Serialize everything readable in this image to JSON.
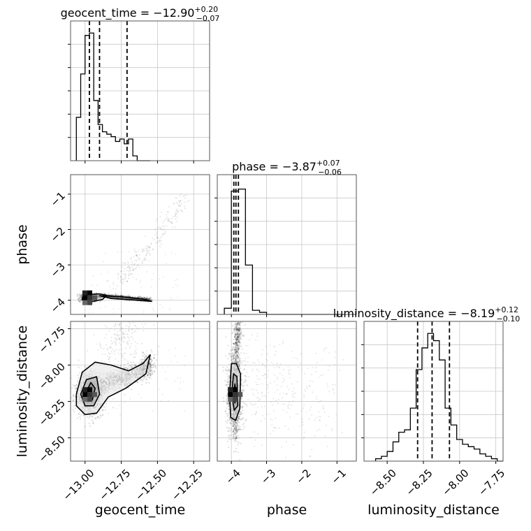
{
  "chart_data": {
    "type": "corner",
    "parameters": [
      {
        "name": "geocent_time",
        "title_main": "geocent_time = −12.90",
        "title_sup": "+0.20",
        "title_sub": "−0.07",
        "lim": [
          -13.1,
          -12.14
        ],
        "ticks": [
          -13.0,
          -12.75,
          -12.5,
          -12.25
        ],
        "tick_labels": [
          "−13.00",
          "−12.75",
          "−12.50",
          "−12.25"
        ],
        "quantiles": [
          -12.97,
          -12.9,
          -12.71
        ],
        "hist": {
          "edges": [
            -13.06,
            -13.03,
            -13.0,
            -12.97,
            -12.94,
            -12.91,
            -12.88,
            -12.85,
            -12.82,
            -12.79,
            -12.76,
            -12.73,
            -12.7,
            -12.67,
            -12.64,
            -12.61,
            -12.58,
            -12.55
          ],
          "counts": [
            18,
            36,
            52,
            53,
            25,
            15,
            12,
            11,
            10,
            8,
            9,
            7,
            9,
            2,
            0,
            0,
            0
          ]
        },
        "hist_max": 58
      },
      {
        "name": "phase",
        "title_main": "phase = −3.87",
        "title_sup": "+0.07",
        "title_sub": "−0.06",
        "lim": [
          -4.4,
          -0.45
        ],
        "ticks": [
          -4,
          -3,
          -2,
          -1
        ],
        "tick_labels": [
          "−4",
          "−3",
          "−2",
          "−1"
        ],
        "quantiles": [
          -3.93,
          -3.87,
          -3.8
        ],
        "hist": {
          "edges": [
            -4.2,
            -4.0,
            -3.8,
            -3.6,
            -3.4,
            -3.2,
            -3.0,
            -2.8,
            -2.6,
            -2.4,
            -2.2,
            -2.0,
            -1.8,
            -1.6,
            -1.4,
            -1.2,
            -1.0,
            -0.8
          ],
          "counts": [
            3,
            60,
            61,
            24,
            2,
            1,
            0,
            0,
            0,
            0,
            0,
            0,
            0,
            0,
            0,
            0,
            0
          ]
        },
        "hist_max": 68
      },
      {
        "name": "luminosity_distance",
        "title_main": "luminosity_distance = −8.19",
        "title_sup": "+0.12",
        "title_sub": "−0.10",
        "lim": [
          -8.66,
          -7.7
        ],
        "ticks": [
          -8.5,
          -8.25,
          -8.0,
          -7.75
        ],
        "tick_labels": [
          "−8.50",
          "−8.25",
          "−8.00",
          "−7.75"
        ],
        "quantiles": [
          -8.29,
          -8.19,
          -8.07
        ],
        "hist": {
          "edges": [
            -8.58,
            -8.54,
            -8.5,
            -8.46,
            -8.42,
            -8.38,
            -8.34,
            -8.3,
            -8.26,
            -8.22,
            -8.18,
            -8.14,
            -8.1,
            -8.06,
            -8.02,
            -7.98,
            -7.94,
            -7.9,
            -7.86,
            -7.82,
            -7.78,
            -7.74,
            -7.7
          ],
          "counts": [
            1,
            2,
            4,
            8,
            12,
            13,
            22,
            38,
            47,
            53,
            50,
            42,
            22,
            15,
            9,
            7,
            6,
            5,
            3,
            2,
            1,
            0
          ]
        },
        "hist_max": 58
      }
    ],
    "labels": {
      "x": [
        "geocent_time",
        "phase",
        "luminosity_distance"
      ],
      "y": [
        "phase",
        "luminosity_distance"
      ]
    },
    "pair_panels": [
      {
        "x_param": "geocent_time",
        "y_param": "phase",
        "density_center": [
          -12.97,
          -3.92
        ],
        "density_spread": [
          0.02,
          0.03
        ],
        "ridge": [
          [
            -12.96,
            -3.9
          ],
          [
            -12.85,
            -3.88
          ],
          [
            -12.7,
            -3.93
          ],
          [
            -12.55,
            -3.98
          ]
        ],
        "plume": [
          [
            -12.8,
            -3.6
          ],
          [
            -12.55,
            -2.5
          ],
          [
            -12.3,
            -1.0
          ]
        ],
        "contours": [
          [
            [
              -13.02,
              -3.94
            ],
            [
              -12.98,
              -3.84
            ],
            [
              -12.9,
              -3.82
            ],
            [
              -12.85,
              -3.86
            ],
            [
              -12.88,
              -3.98
            ],
            [
              -12.96,
              -4.04
            ],
            [
              -13.02,
              -3.99
            ]
          ],
          [
            [
              -12.99,
              -3.94
            ],
            [
              -12.96,
              -3.88
            ],
            [
              -12.92,
              -3.9
            ],
            [
              -12.94,
              -3.97
            ]
          ],
          [
            [
              -12.9,
              -3.87
            ],
            [
              -12.75,
              -3.9
            ],
            [
              -12.6,
              -3.97
            ],
            [
              -12.54,
              -4.03
            ],
            [
              -12.68,
              -3.99
            ],
            [
              -12.82,
              -3.95
            ]
          ]
        ]
      },
      {
        "x_param": "geocent_time",
        "y_param": "luminosity_distance",
        "density_center": [
          -12.97,
          -8.2
        ],
        "density_spread": [
          0.03,
          0.04
        ],
        "ridge": [
          [
            -12.98,
            -8.2
          ],
          [
            -12.85,
            -8.12
          ],
          [
            -12.72,
            -8.08
          ],
          [
            -12.6,
            -8.04
          ],
          [
            -12.55,
            -7.98
          ]
        ],
        "plume": [
          [
            -12.85,
            -7.95
          ],
          [
            -12.75,
            -7.8
          ],
          [
            -12.65,
            -7.7
          ]
        ],
        "contours": [
          [
            [
              -13.06,
              -8.2
            ],
            [
              -13.02,
              -8.05
            ],
            [
              -12.93,
              -7.98
            ],
            [
              -12.82,
              -8.0
            ],
            [
              -12.7,
              -8.04
            ],
            [
              -12.6,
              -7.99
            ],
            [
              -12.55,
              -7.93
            ],
            [
              -12.58,
              -8.06
            ],
            [
              -12.72,
              -8.16
            ],
            [
              -12.84,
              -8.22
            ],
            [
              -12.92,
              -8.33
            ],
            [
              -13.0,
              -8.34
            ],
            [
              -13.06,
              -8.28
            ]
          ],
          [
            [
              -13.03,
              -8.2
            ],
            [
              -12.99,
              -8.1
            ],
            [
              -12.92,
              -8.08
            ],
            [
              -12.9,
              -8.2
            ],
            [
              -12.94,
              -8.28
            ],
            [
              -13.0,
              -8.28
            ]
          ],
          [
            [
              -12.99,
              -8.18
            ],
            [
              -12.96,
              -8.12
            ],
            [
              -12.93,
              -8.16
            ],
            [
              -12.95,
              -8.24
            ]
          ]
        ]
      },
      {
        "x_param": "phase",
        "y_param": "luminosity_distance",
        "density_center": [
          -3.9,
          -8.2
        ],
        "density_spread": [
          0.07,
          0.08
        ],
        "ridge": [
          [
            -3.9,
            -8.45
          ],
          [
            -3.9,
            -8.2
          ],
          [
            -3.85,
            -7.85
          ],
          [
            -3.8,
            -7.72
          ]
        ],
        "plume": [
          [
            -3.5,
            -8.1
          ],
          [
            -2.5,
            -8.2
          ],
          [
            -1.0,
            -8.25
          ]
        ],
        "contours": [
          [
            [
              -4.05,
              -8.2
            ],
            [
              -4.0,
              -7.99
            ],
            [
              -3.86,
              -7.99
            ],
            [
              -3.74,
              -8.06
            ],
            [
              -3.76,
              -8.3
            ],
            [
              -3.88,
              -8.38
            ],
            [
              -4.02,
              -8.36
            ]
          ],
          [
            [
              -3.99,
              -8.2
            ],
            [
              -3.94,
              -8.06
            ],
            [
              -3.84,
              -8.08
            ],
            [
              -3.82,
              -8.28
            ],
            [
              -3.92,
              -8.31
            ]
          ],
          [
            [
              -3.94,
              -8.2
            ],
            [
              -3.9,
              -8.13
            ],
            [
              -3.86,
              -8.2
            ],
            [
              -3.9,
              -8.26
            ]
          ]
        ]
      }
    ],
    "grid": true
  }
}
